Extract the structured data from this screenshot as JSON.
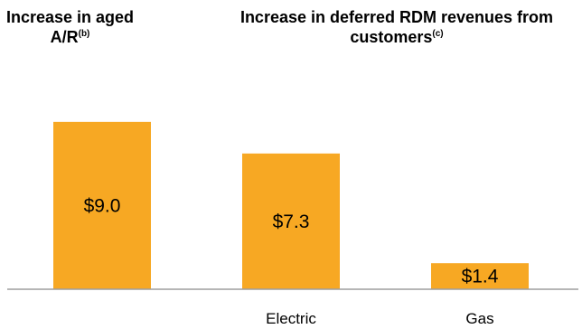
{
  "headings": {
    "left": {
      "text": "Increase in aged A/R",
      "sup": "(b)"
    },
    "right": {
      "text": "Increase in deferred RDM revenues from customers",
      "sup": "(c)"
    }
  },
  "colors": {
    "bar": "#F7A823",
    "axis": "#9E9E9E"
  },
  "chart_data": {
    "type": "bar",
    "categories": [
      "",
      "Electric",
      "Gas"
    ],
    "values": [
      9.0,
      7.3,
      1.4
    ],
    "value_labels": [
      "$9.0",
      "$7.3",
      "$1.4"
    ],
    "ylim": [
      0,
      10.5
    ],
    "grid": false,
    "legend": "none"
  }
}
